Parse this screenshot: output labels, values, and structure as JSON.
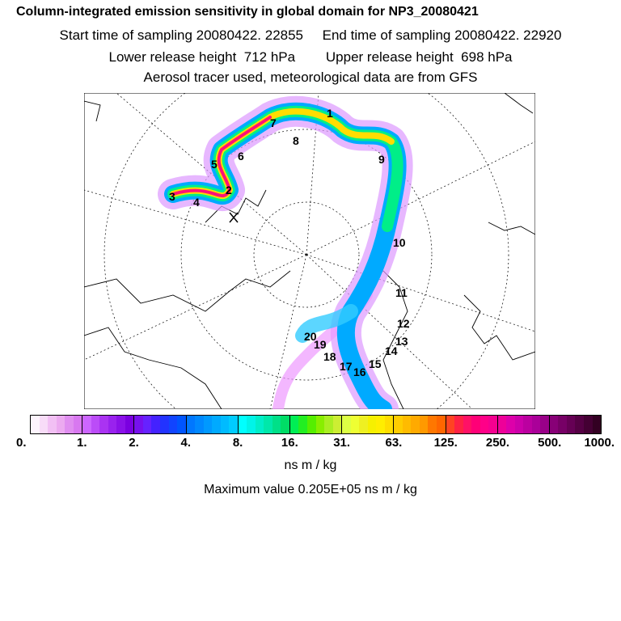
{
  "header": {
    "title": "Column-integrated emission sensitivity in global domain for NP3_20080421",
    "sampling": "Start time of sampling 20080422. 22855     End time of sampling 20080422. 22920",
    "release": "Lower release height  712 hPa        Upper release height  698 hPa",
    "tracer": "Aerosol tracer used, meteorological data are from GFS"
  },
  "map": {
    "labels": [
      "1",
      "2",
      "3",
      "4",
      "5",
      "6",
      "7",
      "8",
      "9",
      "10",
      "11",
      "12",
      "13",
      "14",
      "15",
      "16",
      "17",
      "18",
      "19",
      "20"
    ]
  },
  "colorbar": {
    "ticks": [
      "0.",
      "1.",
      "2.",
      "4.",
      "8.",
      "16.",
      "31.",
      "63.",
      "125.",
      "250.",
      "500.",
      "1000."
    ],
    "units": "ns m / kg",
    "segments": [
      [
        "#fdf4fd",
        "#f8dcf8",
        "#f2c0f4",
        "#ecaaf0",
        "#e08ef0",
        "#d878f0"
      ],
      [
        "#cc66ff",
        "#bb4cf8",
        "#aa33f2",
        "#9922ee",
        "#8a11e8",
        "#7a00e0"
      ],
      [
        "#7711ee",
        "#6622ff",
        "#4422ff",
        "#2233ff",
        "#1144ff",
        "#0055ff"
      ],
      [
        "#0077ff",
        "#0088ff",
        "#0099ff",
        "#00aaff",
        "#00bbff",
        "#00ccff"
      ],
      [
        "#00ffff",
        "#00f4e8",
        "#00eec8",
        "#00e8aa",
        "#00e088",
        "#00dd66"
      ],
      [
        "#00ee55",
        "#22ee22",
        "#55ee00",
        "#88ee00",
        "#aaee22",
        "#ccee33"
      ],
      [
        "#ddff44",
        "#eeff33",
        "#eef022",
        "#f6f000",
        "#ffee00",
        "#ffdd00"
      ],
      [
        "#ffcc00",
        "#ffbb00",
        "#ffaa00",
        "#ff9900",
        "#ff7700",
        "#ff6600"
      ],
      [
        "#ff4422",
        "#ff2244",
        "#ff1166",
        "#ff0077",
        "#ff0088",
        "#f50090"
      ],
      [
        "#ee0099",
        "#dd00aa",
        "#cc00aa",
        "#bb00a0",
        "#aa0099",
        "#990088"
      ],
      [
        "#880077",
        "#770066",
        "#660055",
        "#550044",
        "#440033",
        "#330022"
      ]
    ]
  },
  "max_value": "Maximum value  0.205E+05 ns m / kg",
  "colors": {
    "plume_main": "#00aaff",
    "plume_outer": "#cc44ff",
    "plume_core": "#ffdd00",
    "plume_hot": "#ff1177"
  }
}
